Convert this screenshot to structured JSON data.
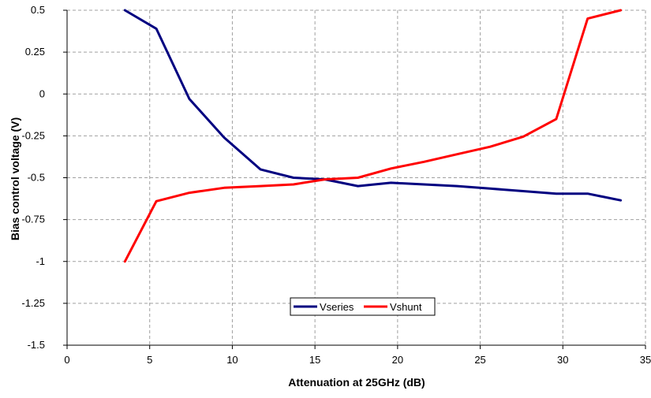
{
  "chart_data": {
    "type": "line",
    "title": "",
    "xlabel": "Attenuation at 25GHz (dB)",
    "ylabel": "Bias control voltage (V)",
    "xlim": [
      0,
      35
    ],
    "ylim": [
      -1.5,
      0.5
    ],
    "x_ticks": [
      0,
      5,
      10,
      15,
      20,
      25,
      30,
      35
    ],
    "y_ticks": [
      -1.5,
      -1.25,
      -1,
      -0.75,
      -0.5,
      -0.25,
      0,
      0.25,
      0.5
    ],
    "x_tick_labels": [
      "0",
      "5",
      "10",
      "15",
      "20",
      "25",
      "30",
      "35"
    ],
    "y_tick_labels": [
      "-1.5",
      "-1.25",
      "-1",
      "-0.75",
      "-0.5",
      "-0.25",
      "0",
      "0.25",
      "0.5"
    ],
    "grid": true,
    "legend_position": "bottom-center",
    "series": [
      {
        "name": "Vseries",
        "color": "#000080",
        "x": [
          3.5,
          5.4,
          7.4,
          9.5,
          11.7,
          13.7,
          15.6,
          17.6,
          19.6,
          21.6,
          23.6,
          25.6,
          27.6,
          29.6,
          31.5,
          33.5
        ],
        "y": [
          0.5,
          0.39,
          -0.03,
          -0.26,
          -0.45,
          -0.5,
          -0.51,
          -0.55,
          -0.53,
          -0.54,
          -0.55,
          -0.565,
          -0.58,
          -0.595,
          -0.595,
          -0.635
        ]
      },
      {
        "name": "Vshunt",
        "color": "#ff0000",
        "x": [
          3.5,
          5.4,
          7.4,
          9.5,
          11.7,
          13.7,
          15.6,
          17.6,
          19.6,
          21.6,
          23.6,
          25.6,
          27.6,
          29.6,
          31.5,
          33.5
        ],
        "y": [
          -1.0,
          -0.64,
          -0.59,
          -0.56,
          -0.55,
          -0.54,
          -0.51,
          -0.5,
          -0.445,
          -0.405,
          -0.36,
          -0.315,
          -0.255,
          -0.15,
          0.45,
          0.5
        ]
      }
    ]
  }
}
